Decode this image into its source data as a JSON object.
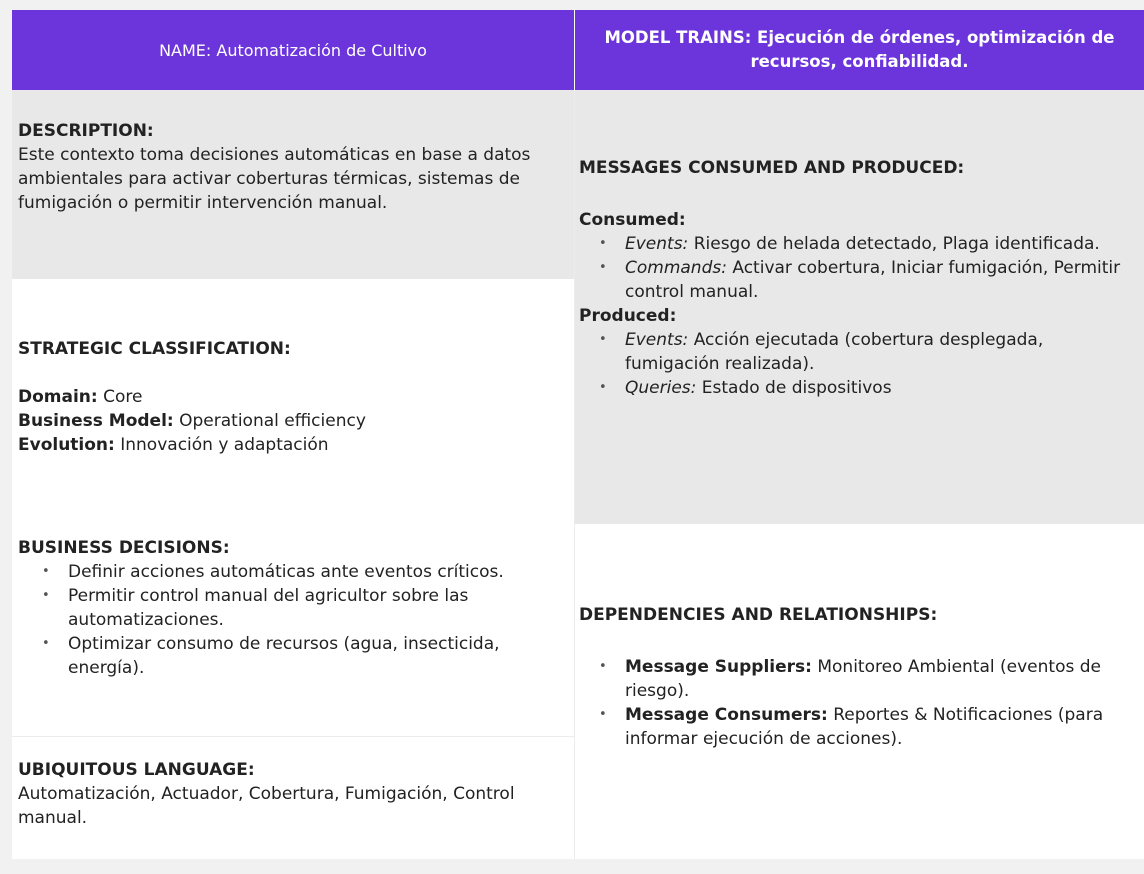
{
  "header": {
    "name": "NAME: Automatización de Cultivo",
    "model_traits": "MODEL TRAINS: Ejecución de órdenes, optimización de recursos, confiabilidad."
  },
  "description": {
    "title": "DESCRIPTION:",
    "text": "Este contexto toma decisiones automáticas en base a datos ambientales para activar coberturas térmicas, sistemas de fumigación o permitir intervención manual."
  },
  "strategic": {
    "title": "STRATEGIC CLASSIFICATION:",
    "domain_label": "Domain:",
    "domain_value": " Core",
    "business_label": "Business Model:",
    "business_value": " Operational efficiency",
    "evolution_label": "Evolution:",
    "evolution_value": " Innovación y adaptación"
  },
  "messages": {
    "title": "MESSAGES CONSUMED AND PRODUCED:",
    "consumed_title": "Consumed:",
    "consumed": [
      {
        "kind": "Events:",
        "text": " Riesgo de helada detectado, Plaga identificada."
      },
      {
        "kind": "Commands:",
        "text": " Activar cobertura, Iniciar fumigación, Permitir control manual."
      }
    ],
    "produced_title": "Produced:",
    "produced": [
      {
        "kind": "Events:",
        "text": " Acción ejecutada (cobertura desplegada, fumigación realizada)."
      },
      {
        "kind": "Queries:",
        "text": " Estado de dispositivos"
      }
    ]
  },
  "business_decisions": {
    "title": "BUSINESS DECISIONS:",
    "items": [
      "Definir acciones automáticas ante eventos críticos.",
      "Permitir control manual del agricultor sobre las automatizaciones.",
      "Optimizar consumo de recursos (agua, insecticida, energía)."
    ]
  },
  "ubiquitous": {
    "title": "UBIQUITOUS LANGUAGE:",
    "text": "Automatización, Actuador, Cobertura, Fumigación, Control manual."
  },
  "dependencies": {
    "title": "DEPENDENCIES AND RELATIONSHIPS:",
    "items": [
      {
        "label": "Message Suppliers:",
        "text": " Monitoreo Ambiental (eventos de riesgo)."
      },
      {
        "label": "Message Consumers:",
        "text": " Reportes & Notificaciones (para informar ejecución de acciones)."
      }
    ]
  },
  "colors": {
    "header_bg": "#6c35dc",
    "gray_cell": "#e8e8e8",
    "page_bg": "#f1f1f1"
  },
  "icons": {
    "bullet": "•"
  }
}
